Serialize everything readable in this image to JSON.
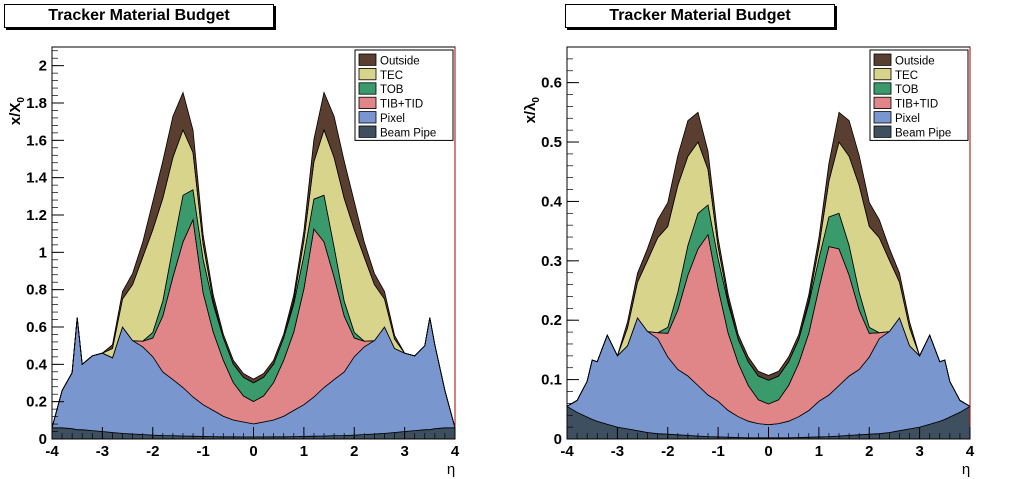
{
  "chart_data": [
    {
      "type": "area",
      "title": "Tracker Material Budget",
      "xlabel": "η",
      "ylabel": "x/X",
      "ylabel_sub": "0",
      "xlim": [
        -4,
        4
      ],
      "ylim": [
        0,
        2.1
      ],
      "x_ticks": [
        "-4",
        "-3",
        "-2",
        "-1",
        "0",
        "1",
        "2",
        "3",
        "4"
      ],
      "y_ticks": [
        "0",
        "0.2",
        "0.4",
        "0.6",
        "0.8",
        "1",
        "1.2",
        "1.4",
        "1.6",
        "1.8",
        "2"
      ],
      "y_tick_values": [
        0,
        0.2,
        0.4,
        0.6,
        0.8,
        1.0,
        1.2,
        1.4,
        1.6,
        1.8,
        2.0
      ],
      "stacked": true,
      "legend_position": "top-right",
      "x": [
        -4.0,
        -3.8,
        -3.6,
        -3.5,
        -3.4,
        -3.2,
        -3.0,
        -2.8,
        -2.6,
        -2.4,
        -2.2,
        -2.0,
        -1.8,
        -1.6,
        -1.4,
        -1.2,
        -1.0,
        -0.8,
        -0.6,
        -0.4,
        -0.2,
        0.0,
        0.2,
        0.4,
        0.6,
        0.8,
        1.0,
        1.2,
        1.4,
        1.6,
        1.8,
        2.0,
        2.2,
        2.4,
        2.6,
        2.8,
        3.0,
        3.2,
        3.4,
        3.5,
        3.6,
        3.8,
        4.0
      ],
      "series": [
        {
          "name": "Beam Pipe",
          "color": "#3e5060",
          "values": [
            0.06,
            0.06,
            0.055,
            0.05,
            0.05,
            0.045,
            0.04,
            0.035,
            0.03,
            0.027,
            0.024,
            0.021,
            0.019,
            0.018,
            0.016,
            0.015,
            0.014,
            0.013,
            0.012,
            0.012,
            0.011,
            0.011,
            0.011,
            0.012,
            0.012,
            0.013,
            0.014,
            0.015,
            0.016,
            0.018,
            0.019,
            0.021,
            0.024,
            0.027,
            0.03,
            0.035,
            0.04,
            0.045,
            0.05,
            0.05,
            0.055,
            0.06,
            0.06
          ]
        },
        {
          "name": "Pixel",
          "color": "#7a96cf",
          "values": [
            0.0,
            0.2,
            0.3,
            0.6,
            0.35,
            0.4,
            0.42,
            0.4,
            0.57,
            0.5,
            0.47,
            0.42,
            0.34,
            0.3,
            0.26,
            0.21,
            0.17,
            0.14,
            0.11,
            0.09,
            0.08,
            0.07,
            0.08,
            0.09,
            0.11,
            0.14,
            0.17,
            0.21,
            0.26,
            0.3,
            0.34,
            0.42,
            0.47,
            0.5,
            0.57,
            0.45,
            0.42,
            0.4,
            0.45,
            0.6,
            0.45,
            0.2,
            0.0
          ]
        },
        {
          "name": "TIB+TID",
          "color": "#e08588",
          "values": [
            0.0,
            0.0,
            0.0,
            0.0,
            0.0,
            0.0,
            0.0,
            0.0,
            0.0,
            0.0,
            0.03,
            0.1,
            0.3,
            0.55,
            0.78,
            0.95,
            0.6,
            0.42,
            0.3,
            0.2,
            0.14,
            0.12,
            0.14,
            0.2,
            0.3,
            0.42,
            0.62,
            0.9,
            0.78,
            0.55,
            0.3,
            0.1,
            0.03,
            0.0,
            0.0,
            0.0,
            0.0,
            0.0,
            0.0,
            0.0,
            0.0,
            0.0,
            0.0
          ]
        },
        {
          "name": "TOB",
          "color": "#3a9a6c",
          "values": [
            0.0,
            0.0,
            0.0,
            0.0,
            0.0,
            0.0,
            0.0,
            0.0,
            0.0,
            0.0,
            0.0,
            0.03,
            0.08,
            0.16,
            0.25,
            0.16,
            0.18,
            0.15,
            0.12,
            0.1,
            0.1,
            0.1,
            0.1,
            0.1,
            0.12,
            0.15,
            0.18,
            0.16,
            0.25,
            0.16,
            0.08,
            0.03,
            0.0,
            0.0,
            0.0,
            0.0,
            0.0,
            0.0,
            0.0,
            0.0,
            0.0,
            0.0,
            0.0
          ]
        },
        {
          "name": "TEC",
          "color": "#d9d48c",
          "values": [
            0.0,
            0.0,
            0.0,
            0.0,
            0.0,
            0.0,
            0.0,
            0.05,
            0.15,
            0.3,
            0.45,
            0.55,
            0.55,
            0.48,
            0.35,
            0.2,
            0.08,
            0.02,
            0.0,
            0.0,
            0.0,
            0.0,
            0.0,
            0.0,
            0.0,
            0.02,
            0.08,
            0.2,
            0.35,
            0.48,
            0.55,
            0.55,
            0.45,
            0.3,
            0.15,
            0.05,
            0.0,
            0.0,
            0.0,
            0.0,
            0.0,
            0.0,
            0.0
          ]
        },
        {
          "name": "Outside",
          "color": "#5a3f31",
          "values": [
            0.0,
            0.0,
            0.0,
            0.0,
            0.0,
            0.0,
            0.0,
            0.02,
            0.04,
            0.06,
            0.08,
            0.15,
            0.2,
            0.22,
            0.2,
            0.12,
            0.05,
            0.03,
            0.02,
            0.02,
            0.02,
            0.02,
            0.02,
            0.02,
            0.02,
            0.03,
            0.05,
            0.12,
            0.2,
            0.22,
            0.2,
            0.15,
            0.08,
            0.06,
            0.04,
            0.02,
            0.0,
            0.0,
            0.0,
            0.0,
            0.0,
            0.0,
            0.0
          ]
        }
      ]
    },
    {
      "type": "area",
      "title": "Tracker Material Budget",
      "xlabel": "η",
      "ylabel": "x/λ",
      "ylabel_sub": "0",
      "xlim": [
        -4,
        4
      ],
      "ylim": [
        0,
        0.66
      ],
      "x_ticks": [
        "-4",
        "-3",
        "-2",
        "-1",
        "0",
        "1",
        "2",
        "3",
        "4"
      ],
      "y_ticks": [
        "0",
        "0.1",
        "0.2",
        "0.3",
        "0.4",
        "0.5",
        "0.6"
      ],
      "y_tick_values": [
        0,
        0.1,
        0.2,
        0.3,
        0.4,
        0.5,
        0.6
      ],
      "stacked": true,
      "legend_position": "top-right",
      "x": [
        -4.0,
        -3.8,
        -3.6,
        -3.5,
        -3.4,
        -3.2,
        -3.0,
        -2.8,
        -2.6,
        -2.4,
        -2.2,
        -2.0,
        -1.8,
        -1.6,
        -1.4,
        -1.2,
        -1.0,
        -0.8,
        -0.6,
        -0.4,
        -0.2,
        0.0,
        0.2,
        0.4,
        0.6,
        0.8,
        1.0,
        1.2,
        1.4,
        1.6,
        1.8,
        2.0,
        2.2,
        2.4,
        2.6,
        2.8,
        3.0,
        3.2,
        3.4,
        3.5,
        3.6,
        3.8,
        4.0
      ],
      "series": [
        {
          "name": "Beam Pipe",
          "color": "#3e5060",
          "values": [
            0.055,
            0.045,
            0.037,
            0.033,
            0.03,
            0.025,
            0.02,
            0.017,
            0.014,
            0.011,
            0.009,
            0.008,
            0.007,
            0.006,
            0.005,
            0.004,
            0.0035,
            0.003,
            0.0025,
            0.002,
            0.002,
            0.002,
            0.002,
            0.002,
            0.0025,
            0.003,
            0.0035,
            0.004,
            0.005,
            0.006,
            0.007,
            0.008,
            0.009,
            0.011,
            0.014,
            0.017,
            0.02,
            0.025,
            0.03,
            0.033,
            0.037,
            0.045,
            0.055
          ]
        },
        {
          "name": "Pixel",
          "color": "#7a96cf",
          "values": [
            0.0,
            0.02,
            0.06,
            0.1,
            0.1,
            0.15,
            0.12,
            0.14,
            0.19,
            0.17,
            0.16,
            0.13,
            0.11,
            0.1,
            0.085,
            0.07,
            0.06,
            0.045,
            0.035,
            0.028,
            0.024,
            0.022,
            0.024,
            0.028,
            0.035,
            0.045,
            0.06,
            0.07,
            0.085,
            0.1,
            0.11,
            0.13,
            0.16,
            0.17,
            0.19,
            0.14,
            0.12,
            0.15,
            0.1,
            0.1,
            0.06,
            0.02,
            0.0
          ]
        },
        {
          "name": "TIB+TID",
          "color": "#e08588",
          "values": [
            0.0,
            0.0,
            0.0,
            0.0,
            0.0,
            0.0,
            0.0,
            0.0,
            0.0,
            0.0,
            0.01,
            0.04,
            0.1,
            0.17,
            0.23,
            0.27,
            0.19,
            0.13,
            0.09,
            0.06,
            0.04,
            0.035,
            0.04,
            0.06,
            0.09,
            0.13,
            0.19,
            0.25,
            0.23,
            0.17,
            0.1,
            0.04,
            0.01,
            0.0,
            0.0,
            0.0,
            0.0,
            0.0,
            0.0,
            0.0,
            0.0,
            0.0,
            0.0
          ]
        },
        {
          "name": "TOB",
          "color": "#3a9a6c",
          "values": [
            0.0,
            0.0,
            0.0,
            0.0,
            0.0,
            0.0,
            0.0,
            0.0,
            0.0,
            0.0,
            0.0,
            0.01,
            0.03,
            0.05,
            0.06,
            0.05,
            0.05,
            0.05,
            0.04,
            0.04,
            0.04,
            0.04,
            0.04,
            0.04,
            0.04,
            0.05,
            0.05,
            0.05,
            0.06,
            0.05,
            0.03,
            0.01,
            0.0,
            0.0,
            0.0,
            0.0,
            0.0,
            0.0,
            0.0,
            0.0,
            0.0,
            0.0,
            0.0
          ]
        },
        {
          "name": "TEC",
          "color": "#d9d48c",
          "values": [
            0.0,
            0.0,
            0.0,
            0.0,
            0.0,
            0.0,
            0.0,
            0.03,
            0.06,
            0.12,
            0.16,
            0.17,
            0.18,
            0.15,
            0.12,
            0.06,
            0.02,
            0.005,
            0.0,
            0.0,
            0.0,
            0.0,
            0.0,
            0.0,
            0.0,
            0.005,
            0.02,
            0.06,
            0.12,
            0.15,
            0.18,
            0.17,
            0.16,
            0.12,
            0.06,
            0.03,
            0.0,
            0.0,
            0.0,
            0.0,
            0.0,
            0.0,
            0.0
          ]
        },
        {
          "name": "Outside",
          "color": "#5a3f31",
          "values": [
            0.0,
            0.0,
            0.0,
            0.0,
            0.0,
            0.0,
            0.0,
            0.01,
            0.015,
            0.02,
            0.03,
            0.04,
            0.05,
            0.06,
            0.05,
            0.03,
            0.015,
            0.01,
            0.008,
            0.008,
            0.008,
            0.008,
            0.008,
            0.008,
            0.008,
            0.01,
            0.015,
            0.03,
            0.05,
            0.06,
            0.05,
            0.04,
            0.03,
            0.02,
            0.015,
            0.01,
            0.0,
            0.0,
            0.0,
            0.0,
            0.0,
            0.0,
            0.0
          ]
        }
      ]
    }
  ]
}
